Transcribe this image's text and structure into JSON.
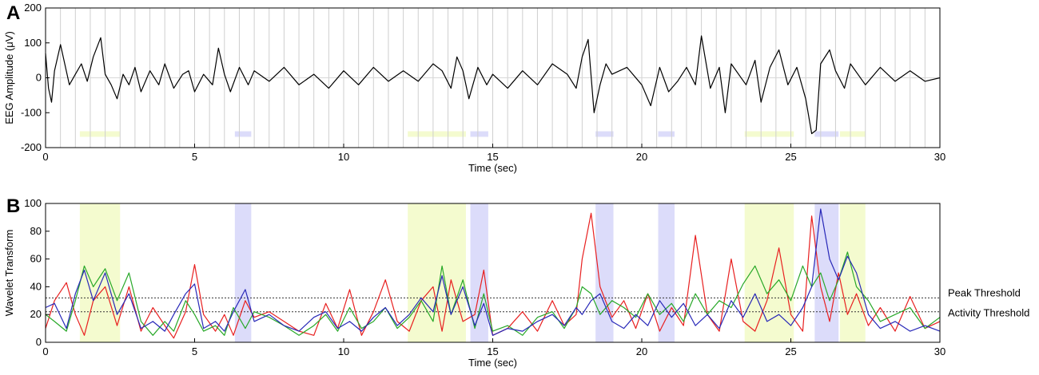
{
  "chart_data": [
    {
      "panel": "A",
      "type": "line",
      "xlabel": "Time (sec)",
      "ylabel": "EEG Amplitude (μV)",
      "xlim": [
        0,
        30
      ],
      "ylim": [
        -200,
        200
      ],
      "xticks": [
        0,
        5,
        10,
        15,
        20,
        25,
        30
      ],
      "yticks": [
        -200,
        -100,
        0,
        100,
        200
      ],
      "grid": "vertical lines every 0.5 sec",
      "series": [
        {
          "color": "#000000",
          "x": [
            0,
            0.1,
            0.2,
            0.3,
            0.5,
            0.8,
            1.0,
            1.2,
            1.4,
            1.6,
            1.85,
            2.0,
            2.2,
            2.4,
            2.6,
            2.8,
            3.0,
            3.2,
            3.5,
            3.8,
            4.0,
            4.3,
            4.6,
            4.8,
            5.0,
            5.3,
            5.6,
            5.8,
            6.0,
            6.2,
            6.5,
            6.8,
            7.0,
            7.5,
            8.0,
            8.5,
            9.0,
            9.5,
            10.0,
            10.5,
            11.0,
            11.5,
            12.0,
            12.5,
            13.0,
            13.3,
            13.6,
            13.8,
            14.0,
            14.2,
            14.5,
            14.8,
            15.0,
            15.5,
            16.0,
            16.5,
            17.0,
            17.5,
            17.8,
            18.0,
            18.2,
            18.4,
            18.6,
            18.8,
            19.0,
            19.5,
            20.0,
            20.3,
            20.6,
            20.9,
            21.2,
            21.5,
            21.8,
            22.0,
            22.3,
            22.6,
            22.8,
            23.0,
            23.5,
            23.8,
            24.0,
            24.3,
            24.6,
            24.9,
            25.2,
            25.5,
            25.7,
            25.85,
            26.0,
            26.3,
            26.5,
            26.8,
            27.0,
            27.5,
            28.0,
            28.5,
            29.0,
            29.5,
            30.0
          ],
          "y": [
            70,
            -30,
            -70,
            20,
            95,
            -20,
            10,
            40,
            -10,
            60,
            115,
            10,
            -20,
            -60,
            10,
            -20,
            30,
            -40,
            20,
            -20,
            40,
            -30,
            10,
            20,
            -40,
            10,
            -20,
            85,
            10,
            -40,
            30,
            -20,
            20,
            -10,
            30,
            -20,
            10,
            -30,
            20,
            -20,
            30,
            -10,
            20,
            -10,
            40,
            20,
            -30,
            60,
            20,
            -60,
            30,
            -20,
            10,
            -30,
            20,
            -20,
            40,
            10,
            -30,
            60,
            110,
            -100,
            -20,
            40,
            10,
            30,
            -20,
            -80,
            30,
            -40,
            -10,
            30,
            -20,
            120,
            -30,
            30,
            -100,
            40,
            -20,
            50,
            -70,
            30,
            80,
            -20,
            30,
            -60,
            -160,
            -150,
            40,
            80,
            20,
            -30,
            40,
            -20,
            30,
            -10,
            20,
            -10,
            0
          ]
        }
      ],
      "bands": [
        {
          "x0": 1.15,
          "x1": 2.5,
          "color": "#f4fbcf"
        },
        {
          "x0": 6.35,
          "x1": 6.9,
          "color": "#dcdcfa"
        },
        {
          "x0": 12.15,
          "x1": 14.1,
          "color": "#f4fbcf"
        },
        {
          "x0": 14.25,
          "x1": 14.85,
          "color": "#dcdcfa"
        },
        {
          "x0": 18.45,
          "x1": 19.05,
          "color": "#dcdcfa"
        },
        {
          "x0": 20.55,
          "x1": 21.1,
          "color": "#dcdcfa"
        },
        {
          "x0": 23.45,
          "x1": 25.1,
          "color": "#f4fbcf"
        },
        {
          "x0": 25.8,
          "x1": 26.6,
          "color": "#dcdcfa"
        },
        {
          "x0": 26.65,
          "x1": 27.5,
          "color": "#f4fbcf"
        }
      ]
    },
    {
      "panel": "B",
      "type": "line",
      "xlabel": "Time (sec)",
      "ylabel": "Wavelet Transform",
      "xlim": [
        0,
        30
      ],
      "ylim": [
        0,
        100
      ],
      "xticks": [
        0,
        5,
        10,
        15,
        20,
        25,
        30
      ],
      "yticks": [
        0,
        20,
        40,
        60,
        80,
        100
      ],
      "thresholds": [
        {
          "label": "Peak Threshold",
          "y": 32
        },
        {
          "label": "Activity Threshold",
          "y": 22
        }
      ],
      "bands": [
        {
          "x0": 1.15,
          "x1": 2.5,
          "color": "#f4fbcf"
        },
        {
          "x0": 6.35,
          "x1": 6.9,
          "color": "#dcdcfa"
        },
        {
          "x0": 12.15,
          "x1": 14.1,
          "color": "#f4fbcf"
        },
        {
          "x0": 14.25,
          "x1": 14.85,
          "color": "#dcdcfa"
        },
        {
          "x0": 18.45,
          "x1": 19.05,
          "color": "#dcdcfa"
        },
        {
          "x0": 20.55,
          "x1": 21.1,
          "color": "#dcdcfa"
        },
        {
          "x0": 23.45,
          "x1": 25.1,
          "color": "#f4fbcf"
        },
        {
          "x0": 25.8,
          "x1": 26.6,
          "color": "#dcdcfa"
        },
        {
          "x0": 26.65,
          "x1": 27.5,
          "color": "#f4fbcf"
        }
      ],
      "series": [
        {
          "color": "#e82020",
          "x": [
            0,
            0.3,
            0.7,
            1.0,
            1.3,
            1.6,
            2.0,
            2.4,
            2.8,
            3.2,
            3.6,
            4.0,
            4.3,
            4.7,
            5.0,
            5.3,
            5.7,
            6.0,
            6.3,
            6.7,
            7.0,
            7.5,
            8.0,
            8.5,
            9.0,
            9.4,
            9.8,
            10.2,
            10.6,
            11.0,
            11.4,
            11.8,
            12.2,
            12.6,
            13.0,
            13.3,
            13.6,
            14.0,
            14.4,
            14.7,
            15.0,
            15.5,
            16.0,
            16.5,
            17.0,
            17.4,
            17.8,
            18.0,
            18.3,
            18.6,
            19.0,
            19.4,
            19.8,
            20.2,
            20.6,
            21.0,
            21.4,
            21.8,
            22.2,
            22.6,
            23.0,
            23.4,
            23.8,
            24.2,
            24.6,
            25.0,
            25.4,
            25.7,
            26.0,
            26.3,
            26.6,
            26.9,
            27.2,
            27.6,
            28.0,
            28.5,
            29.0,
            29.5,
            30.0
          ],
          "y": [
            10,
            30,
            43,
            20,
            5,
            30,
            40,
            12,
            40,
            8,
            25,
            12,
            3,
            22,
            56,
            20,
            8,
            20,
            5,
            30,
            18,
            22,
            15,
            8,
            5,
            28,
            10,
            38,
            5,
            22,
            45,
            15,
            8,
            30,
            40,
            8,
            45,
            15,
            20,
            52,
            5,
            10,
            22,
            8,
            30,
            12,
            20,
            60,
            93,
            40,
            18,
            30,
            10,
            35,
            8,
            25,
            12,
            77,
            20,
            8,
            60,
            15,
            8,
            30,
            68,
            20,
            8,
            91,
            40,
            15,
            50,
            20,
            35,
            12,
            25,
            8,
            33,
            10,
            15
          ]
        },
        {
          "color": "#28a828",
          "x": [
            0,
            0.3,
            0.7,
            1.0,
            1.3,
            1.6,
            2.0,
            2.4,
            2.8,
            3.2,
            3.6,
            4.0,
            4.3,
            4.7,
            5.0,
            5.3,
            5.7,
            6.0,
            6.3,
            6.7,
            7.0,
            7.5,
            8.0,
            8.5,
            9.0,
            9.4,
            9.8,
            10.2,
            10.6,
            11.0,
            11.4,
            11.8,
            12.2,
            12.6,
            13.0,
            13.3,
            13.6,
            14.0,
            14.4,
            14.7,
            15.0,
            15.5,
            16.0,
            16.5,
            17.0,
            17.4,
            17.8,
            18.0,
            18.3,
            18.6,
            19.0,
            19.4,
            19.8,
            20.2,
            20.6,
            21.0,
            21.4,
            21.8,
            22.2,
            22.6,
            23.0,
            23.4,
            23.8,
            24.2,
            24.6,
            25.0,
            25.4,
            25.7,
            26.0,
            26.3,
            26.6,
            26.9,
            27.2,
            27.6,
            28.0,
            28.5,
            29.0,
            29.5,
            30.0
          ],
          "y": [
            20,
            15,
            8,
            30,
            55,
            40,
            53,
            30,
            50,
            15,
            5,
            15,
            8,
            30,
            20,
            8,
            12,
            5,
            25,
            10,
            22,
            18,
            12,
            5,
            12,
            20,
            8,
            25,
            10,
            15,
            25,
            10,
            18,
            30,
            15,
            55,
            20,
            45,
            10,
            35,
            8,
            12,
            5,
            18,
            22,
            10,
            25,
            40,
            35,
            20,
            30,
            25,
            18,
            35,
            20,
            28,
            15,
            35,
            20,
            30,
            25,
            42,
            55,
            35,
            45,
            30,
            55,
            40,
            50,
            30,
            45,
            65,
            40,
            30,
            15,
            20,
            25,
            10,
            18
          ]
        },
        {
          "color": "#2828b8",
          "x": [
            0,
            0.3,
            0.7,
            1.0,
            1.3,
            1.6,
            2.0,
            2.4,
            2.8,
            3.2,
            3.6,
            4.0,
            4.3,
            4.7,
            5.0,
            5.3,
            5.7,
            6.0,
            6.3,
            6.7,
            7.0,
            7.5,
            8.0,
            8.5,
            9.0,
            9.4,
            9.8,
            10.2,
            10.6,
            11.0,
            11.4,
            11.8,
            12.2,
            12.6,
            13.0,
            13.3,
            13.6,
            14.0,
            14.4,
            14.7,
            15.0,
            15.5,
            16.0,
            16.5,
            17.0,
            17.4,
            17.8,
            18.0,
            18.3,
            18.6,
            19.0,
            19.4,
            19.8,
            20.2,
            20.6,
            21.0,
            21.4,
            21.8,
            22.2,
            22.6,
            23.0,
            23.4,
            23.8,
            24.2,
            24.6,
            25.0,
            25.4,
            25.7,
            26.0,
            26.3,
            26.6,
            26.9,
            27.2,
            27.6,
            28.0,
            28.5,
            29.0,
            29.5,
            30.0
          ],
          "y": [
            25,
            28,
            10,
            35,
            52,
            30,
            50,
            20,
            35,
            10,
            15,
            8,
            20,
            35,
            42,
            10,
            15,
            8,
            22,
            38,
            15,
            20,
            12,
            8,
            18,
            22,
            10,
            15,
            8,
            18,
            25,
            12,
            20,
            32,
            22,
            48,
            20,
            40,
            12,
            28,
            5,
            10,
            8,
            15,
            20,
            12,
            25,
            20,
            30,
            35,
            15,
            10,
            20,
            12,
            30,
            18,
            28,
            12,
            20,
            10,
            30,
            18,
            35,
            15,
            20,
            12,
            25,
            40,
            96,
            60,
            45,
            62,
            50,
            20,
            10,
            15,
            8,
            12,
            8
          ]
        }
      ]
    }
  ]
}
